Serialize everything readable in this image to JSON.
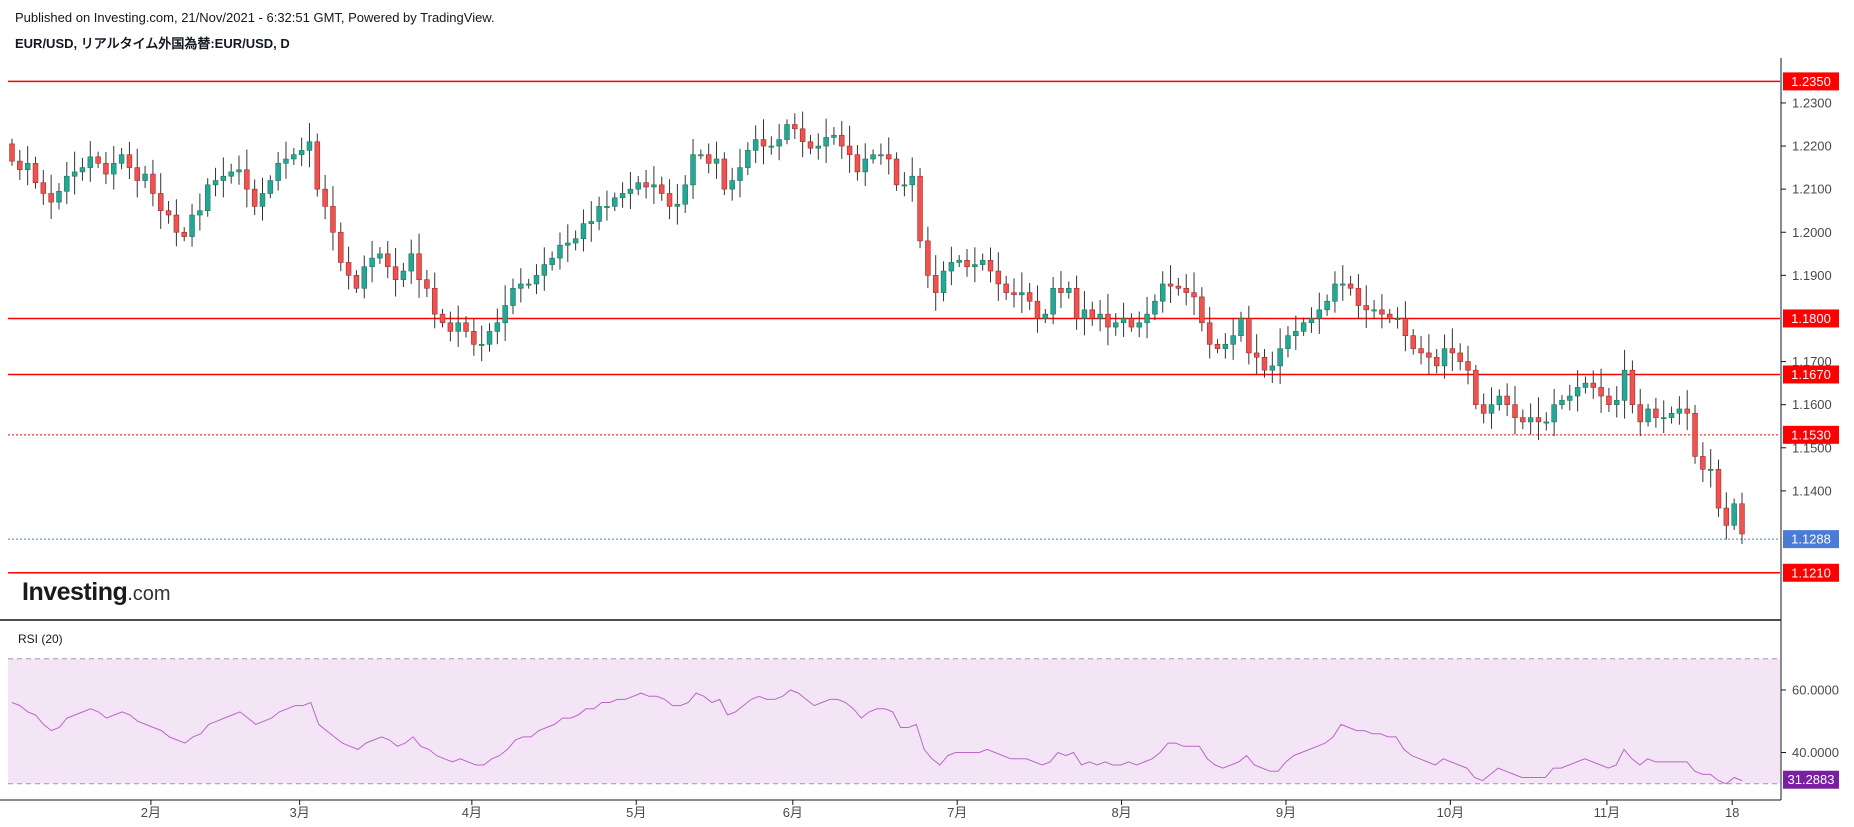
{
  "header": {
    "published": "Published on Investing.com, 21/Nov/2021 - 6:32:51 GMT, Powered by TradingView.",
    "symbol": "EUR/USD, リアルタイム外国為替:EUR/USD, D"
  },
  "logo": {
    "brand": "Investing",
    "suffix": ".com"
  },
  "colors": {
    "up": "#26a69a",
    "up_fill": "#26a69a",
    "down": "#ef5350",
    "level": "#ff0000",
    "current": "#4a7bd6",
    "rsi_line": "#ba68c8",
    "rsi_band": "#f3e5f5",
    "rsi_badge": "#7b1fa2"
  },
  "chart_data": [
    {
      "type": "candlestick",
      "title": "EUR/USD, リアルタイム外国為替:EUR/USD, D",
      "y_ticks": [
        "1.2300",
        "1.2200",
        "1.2100",
        "1.2000",
        "1.1900",
        "1.1700",
        "1.1600",
        "1.1500",
        "1.1400"
      ],
      "ylim": [
        1.117,
        1.2395
      ],
      "x_ticks": [
        "2月",
        "3月",
        "4月",
        "5月",
        "6月",
        "7月",
        "8月",
        "9月",
        "10月",
        "11月",
        "18"
      ],
      "levels": [
        {
          "value": 1.235,
          "label": "1.2350",
          "style": "solid"
        },
        {
          "value": 1.18,
          "label": "1.1800",
          "style": "solid"
        },
        {
          "value": 1.167,
          "label": "1.1670",
          "style": "solid"
        },
        {
          "value": 1.153,
          "label": "1.1530",
          "style": "dotted"
        },
        {
          "value": 1.121,
          "label": "1.1210",
          "style": "solid"
        }
      ],
      "current": {
        "value": 1.1288,
        "label": "1.1288"
      },
      "closes": [
        1.2165,
        1.2145,
        1.216,
        1.2115,
        1.209,
        1.207,
        1.2095,
        1.213,
        1.214,
        1.215,
        1.2175,
        1.216,
        1.2135,
        1.216,
        1.218,
        1.215,
        1.212,
        1.2135,
        1.209,
        1.205,
        1.204,
        1.2,
        1.199,
        1.204,
        1.205,
        1.211,
        1.212,
        1.213,
        1.214,
        1.2145,
        1.21,
        1.206,
        1.209,
        1.212,
        1.216,
        1.217,
        1.218,
        1.219,
        1.221,
        1.21,
        1.206,
        1.2,
        1.193,
        1.19,
        1.187,
        1.192,
        1.194,
        1.195,
        1.192,
        1.189,
        1.191,
        1.195,
        1.189,
        1.187,
        1.181,
        1.179,
        1.177,
        1.179,
        1.177,
        1.174,
        1.174,
        1.177,
        1.179,
        1.183,
        1.187,
        1.188,
        1.188,
        1.19,
        1.1925,
        1.194,
        1.197,
        1.1975,
        1.1985,
        1.202,
        1.2025,
        1.206,
        1.206,
        1.208,
        1.209,
        1.21,
        1.2115,
        1.2105,
        1.211,
        1.209,
        1.206,
        1.2065,
        1.211,
        1.218,
        1.218,
        1.216,
        1.217,
        1.21,
        1.212,
        1.215,
        1.219,
        1.2215,
        1.22,
        1.22,
        1.2215,
        1.225,
        1.224,
        1.221,
        1.2195,
        1.22,
        1.222,
        1.2225,
        1.22,
        1.218,
        1.214,
        1.217,
        1.218,
        1.218,
        1.217,
        1.211,
        1.211,
        1.213,
        1.198,
        1.19,
        1.186,
        1.191,
        1.193,
        1.1935,
        1.192,
        1.1925,
        1.1935,
        1.191,
        1.188,
        1.186,
        1.1855,
        1.186,
        1.184,
        1.18,
        1.181,
        1.187,
        1.186,
        1.187,
        1.18,
        1.182,
        1.18,
        1.181,
        1.178,
        1.179,
        1.18,
        1.178,
        1.179,
        1.181,
        1.184,
        1.188,
        1.1875,
        1.187,
        1.186,
        1.185,
        1.179,
        1.174,
        1.173,
        1.174,
        1.176,
        1.18,
        1.172,
        1.171,
        1.168,
        1.169,
        1.173,
        1.176,
        1.177,
        1.179,
        1.18,
        1.182,
        1.184,
        1.188,
        1.188,
        1.187,
        1.183,
        1.182,
        1.182,
        1.181,
        1.18,
        1.18,
        1.176,
        1.173,
        1.172,
        1.171,
        1.169,
        1.173,
        1.172,
        1.17,
        1.168,
        1.16,
        1.158,
        1.16,
        1.162,
        1.16,
        1.157,
        1.156,
        1.157,
        1.156,
        1.156,
        1.16,
        1.161,
        1.162,
        1.164,
        1.165,
        1.164,
        1.162,
        1.16,
        1.161,
        1.168,
        1.16,
        1.156,
        1.159,
        1.157,
        1.157,
        1.158,
        1.159,
        1.158,
        1.148,
        1.145,
        1.145,
        1.136,
        1.132,
        1.137,
        1.13
      ],
      "rsi": {
        "label": "RSI (20)",
        "y_ticks": [
          "60.0000",
          "40.0000"
        ],
        "ylim": [
          28,
          76
        ],
        "band": [
          30,
          70
        ],
        "last_label": "31.2883",
        "values": [
          56,
          55,
          53,
          52,
          49,
          47,
          48,
          51,
          52,
          53,
          54,
          53,
          51,
          52,
          53,
          52,
          50,
          49,
          48,
          47,
          45,
          44,
          43,
          45,
          46,
          49,
          50,
          51,
          52,
          53,
          51,
          49,
          50,
          51,
          53,
          54,
          55,
          55,
          56,
          49,
          47,
          45,
          43,
          42,
          41,
          43,
          44,
          45,
          44,
          42,
          43,
          45,
          42,
          41,
          39,
          38,
          37,
          38,
          37,
          36,
          36,
          38,
          39,
          41,
          44,
          45,
          45,
          47,
          48,
          49,
          51,
          51,
          52,
          54,
          54,
          56,
          56,
          57,
          57,
          58,
          59,
          58,
          58,
          57,
          55,
          55,
          56,
          59,
          58,
          56,
          57,
          52,
          53,
          55,
          57,
          58,
          57,
          57,
          58,
          60,
          59,
          57,
          55,
          56,
          57,
          57,
          56,
          54,
          51,
          53,
          54,
          54,
          53,
          48,
          48,
          49,
          41,
          38,
          36,
          39,
          40,
          40,
          40,
          40,
          41,
          40,
          39,
          38,
          38,
          38,
          37,
          36,
          37,
          40,
          39,
          40,
          36,
          37,
          36,
          37,
          36,
          36,
          37,
          36,
          37,
          38,
          40,
          43,
          43,
          42,
          42,
          42,
          38,
          36,
          35,
          36,
          37,
          39,
          36,
          35,
          34,
          34,
          37,
          39,
          40,
          41,
          42,
          43,
          45,
          49,
          48,
          47,
          47,
          46,
          46,
          45,
          45,
          41,
          39,
          38,
          37,
          36,
          38,
          37,
          36,
          35,
          32,
          31,
          33,
          35,
          34,
          33,
          32,
          32,
          32,
          32,
          35,
          35,
          36,
          37,
          38,
          37,
          36,
          35,
          36,
          41,
          38,
          36,
          38,
          37,
          37,
          37,
          37,
          37,
          34,
          33,
          33,
          31,
          30,
          32,
          31
        ]
      }
    }
  ]
}
